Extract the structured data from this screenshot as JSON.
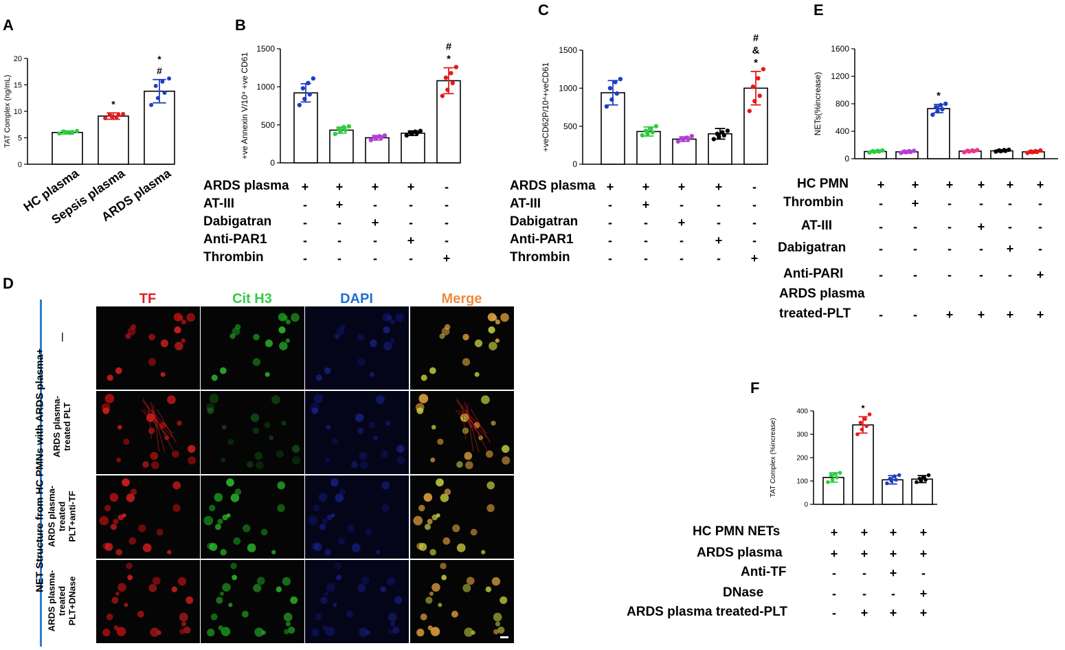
{
  "panels": {
    "A": {
      "letter": "A",
      "chart_data": {
        "type": "bar",
        "categories": [
          "HC plasma",
          "Sepsis plasma",
          "ARDS plasma"
        ],
        "values": [
          6.0,
          9.1,
          13.8
        ],
        "errors": [
          0.3,
          0.6,
          2.2
        ],
        "points": [
          [
            5.8,
            6.0,
            6.1,
            6.2,
            5.9,
            6.3
          ],
          [
            8.7,
            9.0,
            9.3,
            9.4,
            8.9,
            9.5
          ],
          [
            11.2,
            12.5,
            13.5,
            14.8,
            15.6,
            16.2
          ]
        ],
        "colors": [
          "#2ecc40",
          "#e31a1c",
          "#1f3fbf"
        ],
        "ylabel": "TAT Complex (ng/mL)",
        "yticks": [
          0,
          5,
          10,
          15,
          20
        ],
        "ylim": [
          0,
          20
        ],
        "sig": [
          "",
          "*",
          "*\n#"
        ]
      }
    },
    "B": {
      "letter": "B",
      "chart_data": {
        "type": "bar",
        "values": [
          920,
          430,
          330,
          390,
          1080
        ],
        "errors": [
          120,
          40,
          30,
          30,
          170
        ],
        "points": [
          [
            760,
            840,
            900,
            980,
            1050,
            1110
          ],
          [
            380,
            410,
            430,
            450,
            470,
            480
          ],
          [
            300,
            320,
            330,
            340,
            350,
            360
          ],
          [
            360,
            380,
            390,
            400,
            410,
            420
          ],
          [
            880,
            960,
            1050,
            1120,
            1180,
            1260
          ]
        ],
        "colors": [
          "#1f3fbf",
          "#2ecc40",
          "#b23fd6",
          "#000000",
          "#e31a1c"
        ],
        "ylabel": "+ve Annexin V/10⁴ +ve CD61",
        "yticks": [
          0,
          500,
          1000,
          1500
        ],
        "ylim": [
          0,
          1500
        ],
        "sig": [
          "",
          "",
          "",
          "",
          "#\n*"
        ]
      },
      "table": {
        "rows": [
          "ARDS plasma",
          "AT-III",
          "Dabigatran",
          "Anti-PAR1",
          "Thrombin"
        ],
        "values": [
          [
            "+",
            "+",
            "+",
            "+",
            "-"
          ],
          [
            "-",
            "+",
            "-",
            "-",
            "-"
          ],
          [
            "-",
            "-",
            "+",
            "-",
            "-"
          ],
          [
            "-",
            "-",
            "-",
            "+",
            "-"
          ],
          [
            "-",
            "-",
            "-",
            "-",
            "+"
          ]
        ]
      }
    },
    "C": {
      "letter": "C",
      "chart_data": {
        "type": "bar",
        "values": [
          940,
          430,
          330,
          400,
          1000
        ],
        "errors": [
          160,
          60,
          30,
          70,
          220
        ],
        "points": [
          [
            760,
            850,
            930,
            1000,
            1080,
            1120
          ],
          [
            380,
            400,
            420,
            440,
            470,
            500
          ],
          [
            300,
            320,
            330,
            340,
            350,
            370
          ],
          [
            330,
            360,
            380,
            400,
            420,
            440
          ],
          [
            700,
            830,
            900,
            1020,
            1130,
            1250
          ]
        ],
        "colors": [
          "#1f3fbf",
          "#2ecc40",
          "#b23fd6",
          "#000000",
          "#e31a1c"
        ],
        "ylabel": "+veCD62P/10⁴+veCD61",
        "yticks": [
          0,
          500,
          1000,
          1500
        ],
        "ylim": [
          0,
          1500
        ],
        "sig": [
          "",
          "",
          "",
          "",
          "#\n&\n*"
        ]
      },
      "table": {
        "rows": [
          "ARDS plasma",
          "AT-III",
          "Dabigatran",
          "Anti-PAR1",
          "Thrombin"
        ],
        "values": [
          [
            "+",
            "+",
            "+",
            "+",
            "-"
          ],
          [
            "-",
            "+",
            "-",
            "-",
            "-"
          ],
          [
            "-",
            "-",
            "+",
            "-",
            "-"
          ],
          [
            "-",
            "-",
            "-",
            "+",
            "-"
          ],
          [
            "-",
            "-",
            "-",
            "-",
            "+"
          ]
        ]
      }
    },
    "E": {
      "letter": "E",
      "chart_data": {
        "type": "bar",
        "values": [
          105,
          100,
          730,
          110,
          115,
          100
        ],
        "errors": [
          15,
          20,
          60,
          15,
          15,
          20
        ],
        "points": [
          [
            90,
            100,
            105,
            110,
            115,
            120
          ],
          [
            85,
            95,
            100,
            105,
            110,
            115
          ],
          [
            640,
            690,
            720,
            750,
            780,
            800
          ],
          [
            95,
            105,
            110,
            115,
            120,
            125
          ],
          [
            105,
            110,
            115,
            120,
            125,
            130
          ],
          [
            85,
            95,
            100,
            105,
            110,
            120
          ]
        ],
        "colors": [
          "#2ecc40",
          "#b23fd6",
          "#1f3fbf",
          "#e8368f",
          "#000000",
          "#e31a1c"
        ],
        "ylabel": "NETs(%increase)",
        "yticks": [
          0,
          400,
          800,
          1200,
          1600
        ],
        "ylim": [
          0,
          1600
        ],
        "sig": [
          "",
          "",
          "*",
          "",
          "",
          ""
        ]
      },
      "table": {
        "rows": [
          "HC  PMN",
          "Thrombin",
          "AT-III",
          "Dabigatran",
          "Anti-PARI",
          "ARDS plasma",
          "treated-PLT"
        ],
        "values": [
          [
            "+",
            "+",
            "+",
            "+",
            "+",
            "+"
          ],
          [
            "-",
            "+",
            "-",
            "-",
            "-",
            "-"
          ],
          [
            "-",
            "-",
            "-",
            "+",
            "-",
            "-"
          ],
          [
            "-",
            "-",
            "-",
            "-",
            "+",
            "-"
          ],
          [
            "-",
            "-",
            "-",
            "-",
            "-",
            "+"
          ],
          null,
          [
            "-",
            "-",
            "+",
            "+",
            "+",
            "+"
          ]
        ]
      }
    },
    "F": {
      "letter": "F",
      "chart_data": {
        "type": "bar",
        "values": [
          115,
          340,
          105,
          108
        ],
        "errors": [
          20,
          35,
          18,
          15
        ],
        "points": [
          [
            95,
            105,
            115,
            125,
            130,
            135
          ],
          [
            300,
            320,
            335,
            350,
            365,
            385
          ],
          [
            90,
            100,
            105,
            110,
            120,
            125
          ],
          [
            95,
            100,
            105,
            110,
            115,
            125
          ]
        ],
        "colors": [
          "#2ecc40",
          "#e31a1c",
          "#1f3fbf",
          "#000000"
        ],
        "ylabel": "TAT Complex (%increase)",
        "yticks": [
          0,
          100,
          200,
          300,
          400
        ],
        "ylim": [
          0,
          400
        ],
        "sig": [
          "",
          "*",
          "",
          ""
        ]
      },
      "table": {
        "rows": [
          "HC  PMN NETs",
          "ARDS plasma",
          "Anti-TF",
          "DNase",
          "ARDS plasma  treated-PLT"
        ],
        "values": [
          [
            "+",
            "+",
            "+",
            "+"
          ],
          [
            "+",
            "+",
            "+",
            "+"
          ],
          [
            "-",
            "-",
            "+",
            "-"
          ],
          [
            "-",
            "-",
            "-",
            "+"
          ],
          [
            "-",
            "+",
            "+",
            "+"
          ]
        ]
      }
    },
    "D": {
      "letter": "D",
      "side_label": "NET Structure from HC  PMNs with ARDS plasma+",
      "columns": [
        "TF",
        "Cit H3",
        "DAPI",
        "Merge"
      ],
      "column_colors": [
        "#e31a1c",
        "#2ecc40",
        "#1f6fd6",
        "#f08a3c"
      ],
      "rows": [
        "—",
        "ARDS plasma-\ntreated PLT",
        "ARDS plasma-\ntreated\nPLT+anti-TF",
        "ARDS plasma-\ntreated\nPLT+DNase"
      ]
    }
  }
}
